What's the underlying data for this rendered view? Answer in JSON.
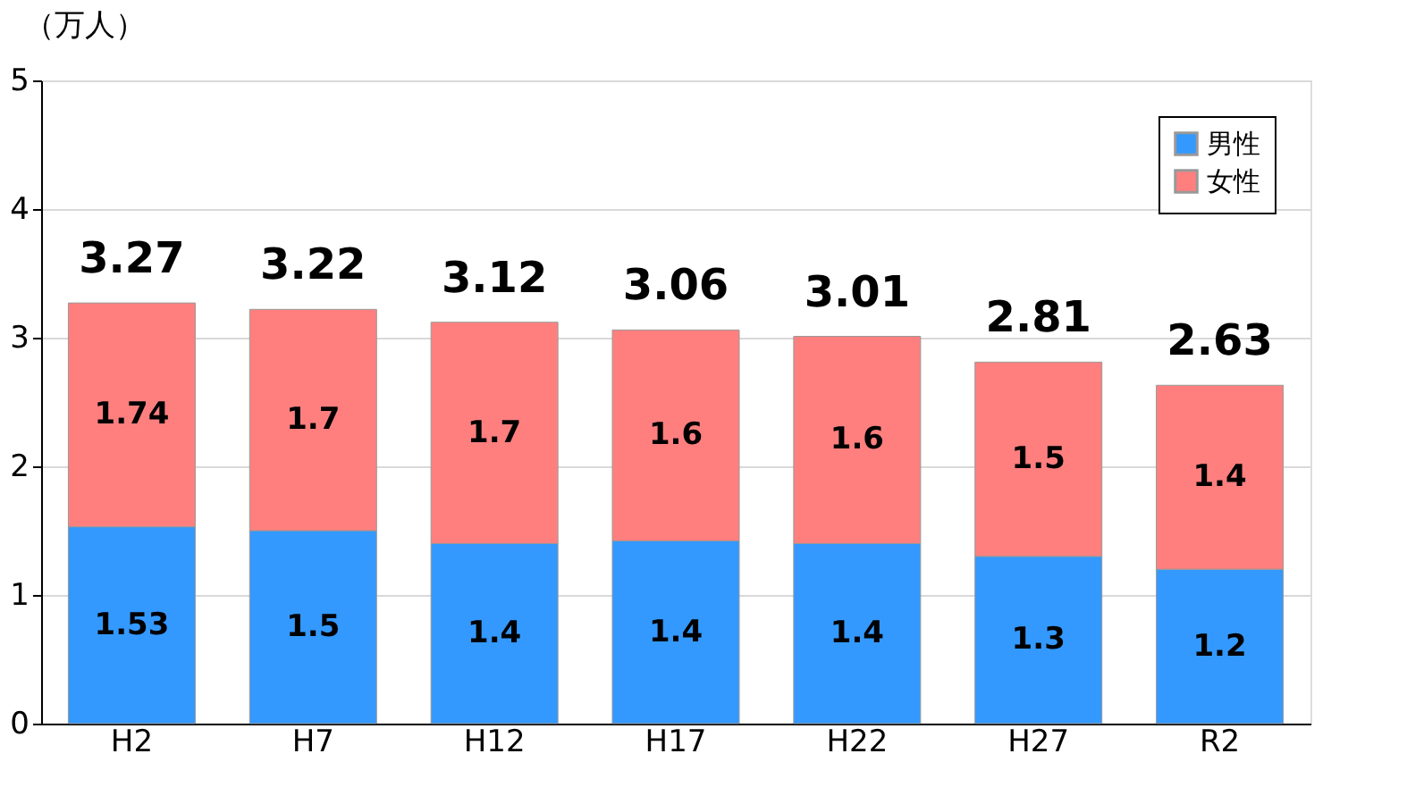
{
  "chart_data": {
    "type": "bar",
    "stacked": true,
    "ylabel": "（万人）",
    "categories": [
      "H2",
      "H7",
      "H12",
      "H17",
      "H22",
      "H27",
      "R2"
    ],
    "series": [
      {
        "name": "男性",
        "color": "#3399ff",
        "values": [
          1.53,
          1.5,
          1.4,
          1.42,
          1.4,
          1.3,
          1.2
        ],
        "value_labels": [
          "1.53",
          "1.5",
          "1.4",
          "1.4",
          "1.4",
          "1.3",
          "1.2"
        ]
      },
      {
        "name": "女性",
        "color": "#ff7f7f",
        "values": [
          1.74,
          1.72,
          1.72,
          1.64,
          1.61,
          1.51,
          1.43
        ],
        "value_labels": [
          "1.74",
          "1.7",
          "1.7",
          "1.6",
          "1.6",
          "1.5",
          "1.4"
        ]
      }
    ],
    "totals": [
      "3.27",
      "3.22",
      "3.12",
      "3.06",
      "3.01",
      "2.81",
      "2.63"
    ],
    "ylim": [
      0,
      5
    ],
    "yticks": [
      0,
      1,
      2,
      3,
      4,
      5
    ],
    "grid": "y",
    "legend": "top right"
  }
}
